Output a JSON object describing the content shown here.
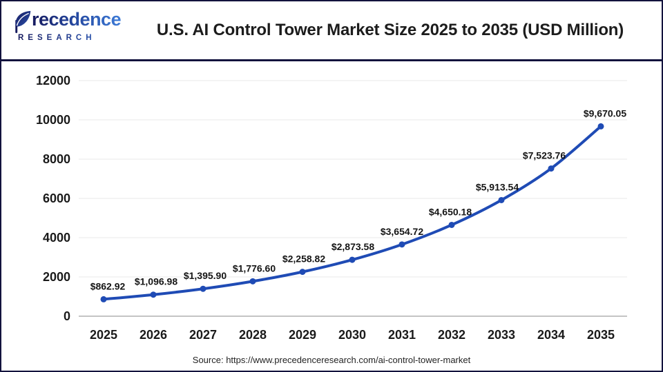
{
  "page": {
    "background": "#FFFFFF",
    "border_color": "#12123D"
  },
  "header": {
    "logo": {
      "brand_full": "Precedence",
      "brand_rest": "recedence",
      "subtitle": "RESEARCH",
      "color_dark": "#161A5E",
      "color_light": "#3D7BD7"
    },
    "title": "U.S. AI Control Tower Market Size 2025 to 2035 (USD Million)"
  },
  "chart_data": {
    "type": "line",
    "title": "U.S. AI Control Tower Market Size 2025 to 2035 (USD Million)",
    "categories": [
      "2025",
      "2026",
      "2027",
      "2028",
      "2029",
      "2030",
      "2031",
      "2032",
      "2033",
      "2034",
      "2035"
    ],
    "values": [
      862.92,
      1096.98,
      1395.9,
      1776.6,
      2258.82,
      2873.58,
      3654.72,
      4650.18,
      5913.54,
      7523.76,
      9670.05
    ],
    "point_labels": [
      "$862.92",
      "$1,096.98",
      "$1,395.90",
      "$1,776.60",
      "$2,258.82",
      "$2,873.58",
      "$3,654.72",
      "$4,650.18",
      "$5,913.54",
      "$7,523.76",
      "$9,670.05"
    ],
    "xlabel": "",
    "ylabel": "",
    "ylim": [
      0,
      12000
    ],
    "yticks": [
      0,
      2000,
      4000,
      6000,
      8000,
      10000,
      12000
    ],
    "grid": true,
    "legend": false,
    "line_color": "#1F4BB5",
    "grid_color": "#EAEAEA",
    "axis_color": "#B0B0B0",
    "marker": "circle"
  },
  "footer": {
    "source": "Source: https://www.precedenceresearch.com/ai-control-tower-market"
  }
}
